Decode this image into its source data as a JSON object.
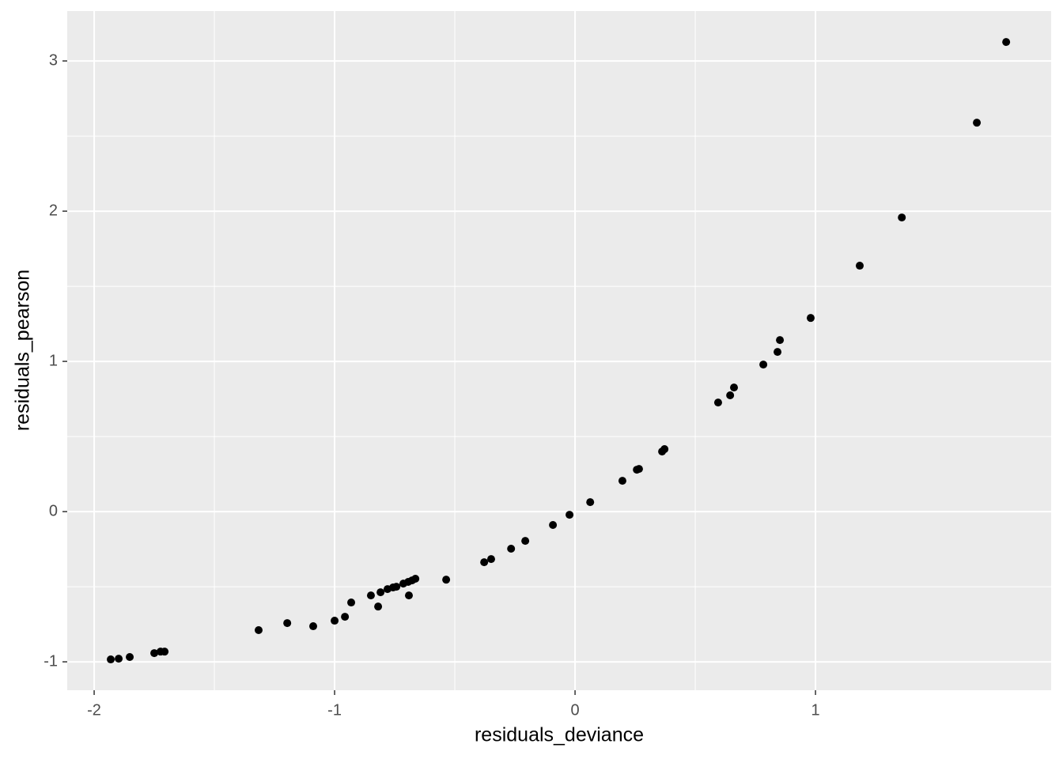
{
  "chart_data": {
    "type": "scatter",
    "xlabel": "residuals_deviance",
    "ylabel": "residuals_pearson",
    "x": [
      -1.931,
      -1.898,
      -1.852,
      -1.75,
      -1.724,
      -1.707,
      -1.316,
      -1.197,
      -1.089,
      -1.0,
      -0.957,
      -0.931,
      -0.849,
      -0.819,
      -0.809,
      -0.78,
      -0.757,
      -0.743,
      -0.714,
      -0.694,
      -0.691,
      -0.678,
      -0.664,
      -0.536,
      -0.378,
      -0.349,
      -0.266,
      -0.207,
      -0.092,
      -0.023,
      0.063,
      0.197,
      0.257,
      0.266,
      0.362,
      0.372,
      0.595,
      0.645,
      0.661,
      0.783,
      0.842,
      0.852,
      0.98,
      1.184,
      1.359,
      1.671,
      1.793
    ],
    "y": [
      -0.984,
      -0.979,
      -0.968,
      -0.942,
      -0.932,
      -0.932,
      -0.789,
      -0.742,
      -0.763,
      -0.726,
      -0.7,
      -0.605,
      -0.558,
      -0.632,
      -0.537,
      -0.516,
      -0.505,
      -0.5,
      -0.479,
      -0.468,
      -0.558,
      -0.458,
      -0.447,
      -0.453,
      -0.337,
      -0.316,
      -0.247,
      -0.195,
      -0.089,
      -0.021,
      0.063,
      0.205,
      0.279,
      0.284,
      0.4,
      0.416,
      0.726,
      0.774,
      0.826,
      0.979,
      1.063,
      1.142,
      1.289,
      1.637,
      1.958,
      2.589,
      3.126
    ],
    "color": "#000000",
    "xlim": [
      -2.112,
      1.98
    ],
    "ylim": [
      -1.189,
      3.332
    ],
    "xticks": [
      -2,
      -1,
      0,
      1
    ],
    "yticks": [
      -1,
      0,
      1,
      2,
      3
    ],
    "grid": true
  }
}
